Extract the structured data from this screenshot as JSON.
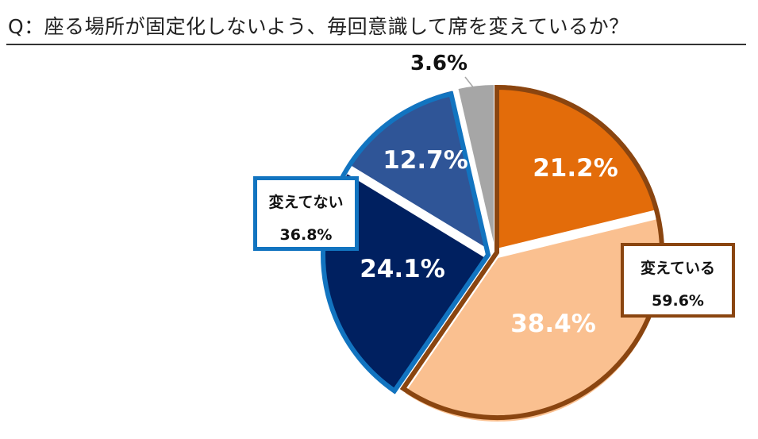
{
  "title": "Q：座る場所が固定化しないよう、毎回意識して席を変えているか？",
  "chart_data": {
    "type": "pie",
    "slices": [
      {
        "label": "21.2%",
        "value": 21.2,
        "color": "#e36c0a"
      },
      {
        "label": "38.4%",
        "value": 38.4,
        "color": "#fac090"
      },
      {
        "label": "24.1%",
        "value": 24.1,
        "color": "#002060"
      },
      {
        "label": "12.7%",
        "value": 12.7,
        "color": "#2f5597"
      },
      {
        "label": "3.6%",
        "value": 3.6,
        "color": "#a6a6a6"
      }
    ],
    "groups": [
      {
        "label": "変えている",
        "value": "59.6%",
        "border_color": "#8a4510"
      },
      {
        "label": "変えてない",
        "value": "36.8%",
        "border_color": "#1274c0"
      }
    ]
  }
}
